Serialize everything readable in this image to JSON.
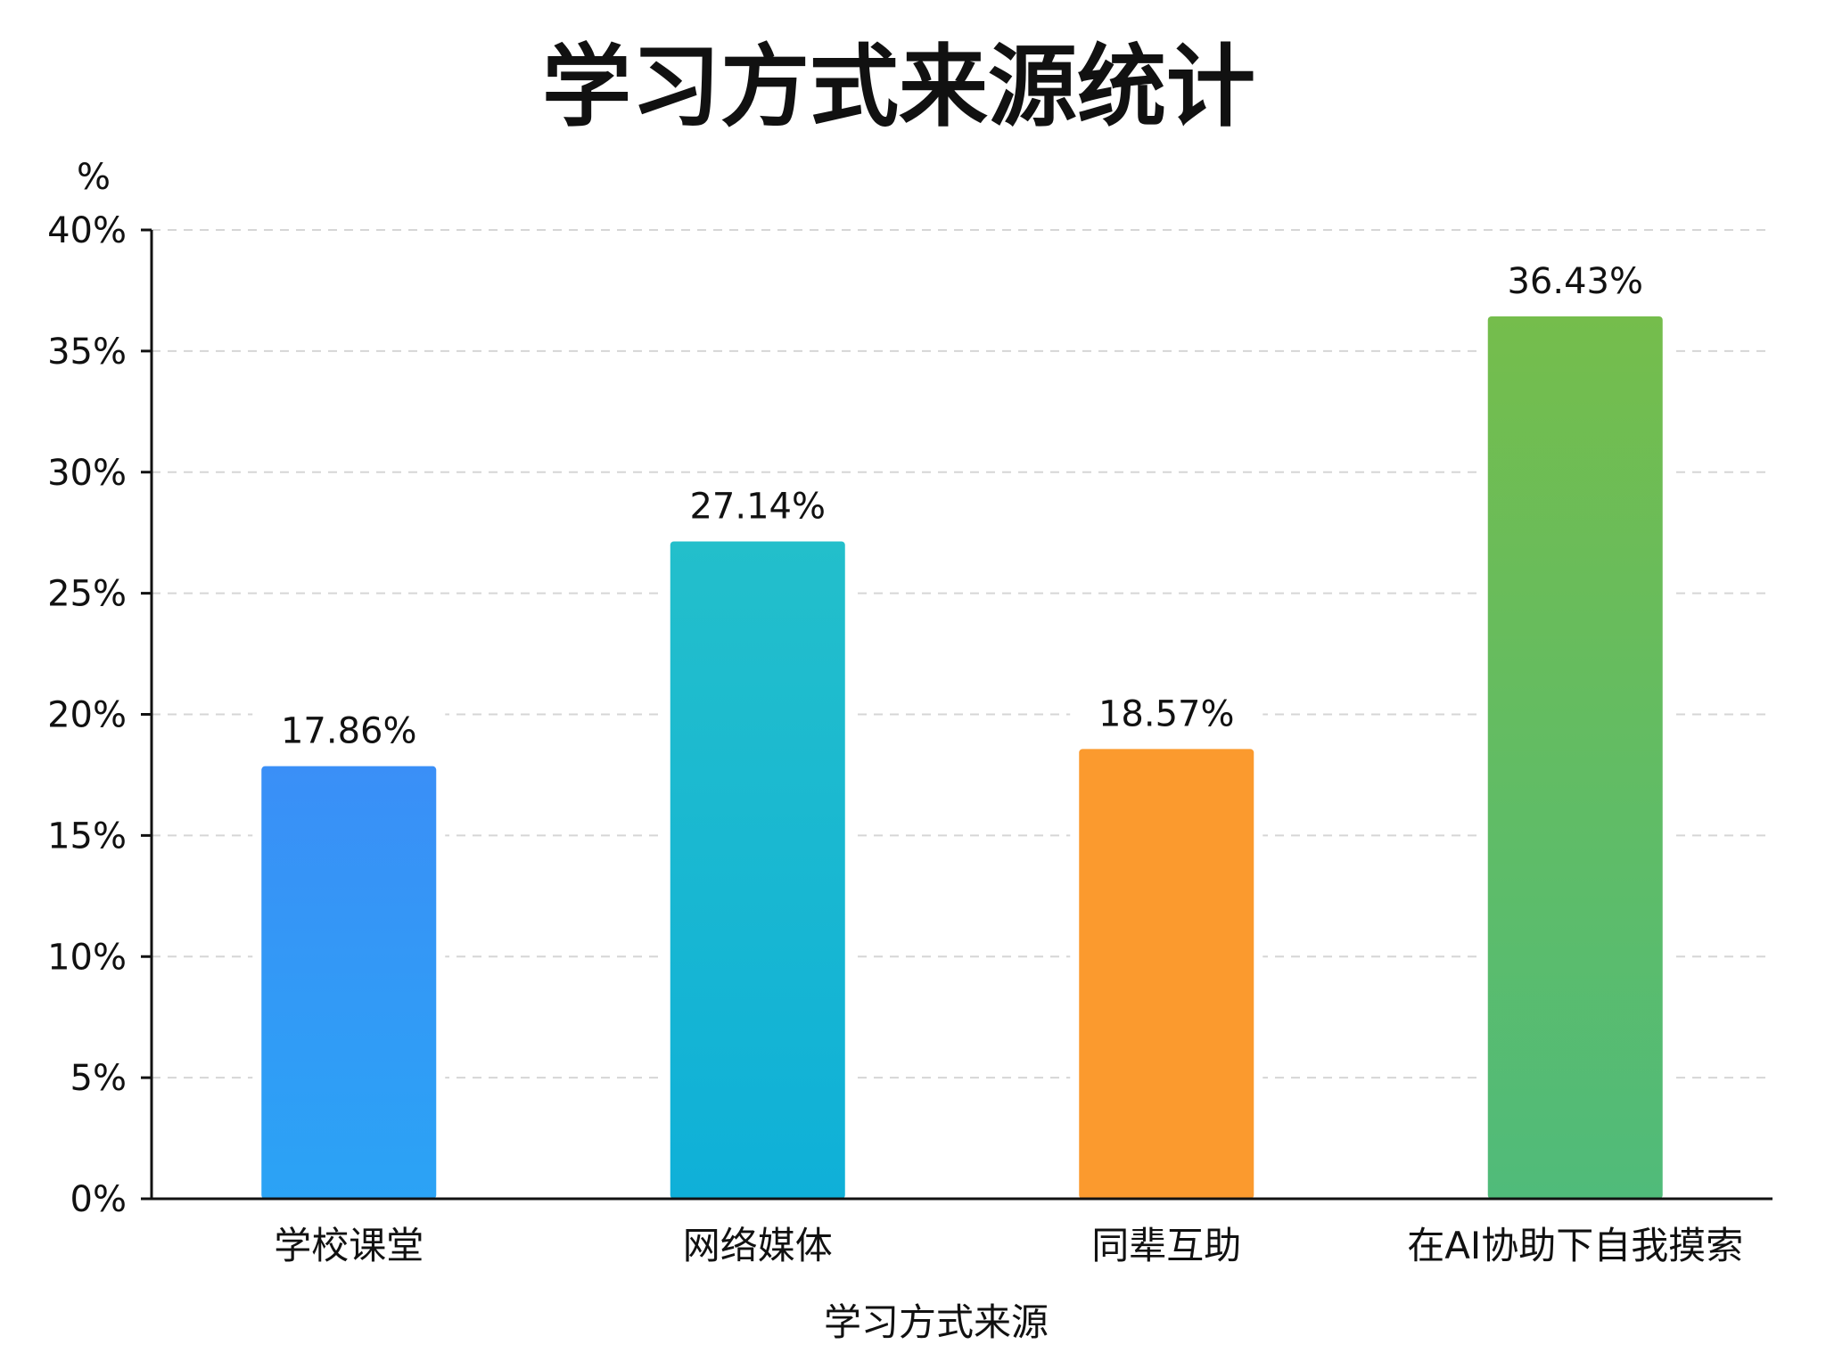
{
  "chart_data": {
    "type": "bar",
    "title": "学习方式来源统计",
    "xlabel": "学习方式来源",
    "ylabel": "%",
    "ylim": [
      0,
      40
    ],
    "yticks": [
      0,
      5,
      10,
      15,
      20,
      25,
      30,
      35,
      40
    ],
    "ytick_labels": [
      "0%",
      "5%",
      "10%",
      "15%",
      "20%",
      "25%",
      "30%",
      "35%",
      "40%"
    ],
    "grid": true,
    "categories": [
      "学校课堂",
      "网络媒体",
      "同辈互助",
      "在AI协助下自我摸索"
    ],
    "values": [
      17.86,
      27.14,
      18.57,
      36.43
    ],
    "value_labels": [
      "17.86%",
      "27.14%",
      "18.57%",
      "36.43%"
    ],
    "bar_colors": [
      [
        "#3a8ff7",
        "#2ba3f5"
      ],
      [
        "#23bfcb",
        "#0fb0d8"
      ],
      [
        "#fb9a2e",
        "#fb9a2e"
      ],
      [
        "#75bd4c",
        "#50bb7a"
      ]
    ]
  }
}
